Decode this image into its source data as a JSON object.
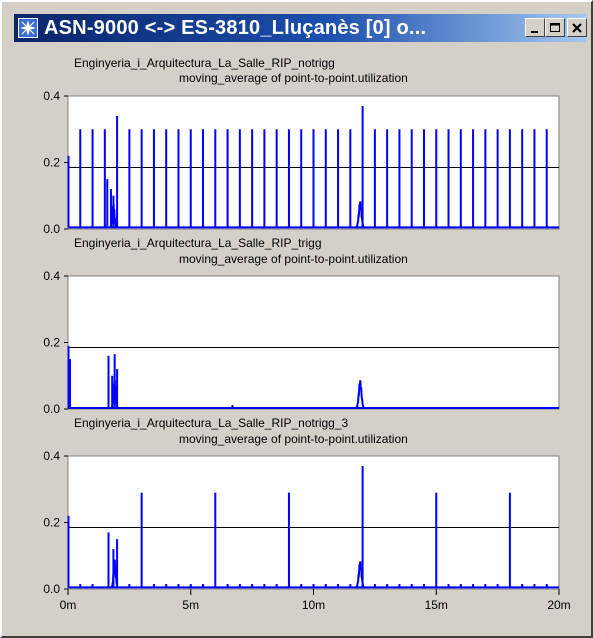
{
  "window": {
    "title": "ASN-9000 <-> ES-3810_Lluçanès [0] o...",
    "controls": [
      "minimize",
      "maximize",
      "close"
    ],
    "icons": {
      "app": "star-icon",
      "minimize": "minimize-icon",
      "maximize": "maximize-icon",
      "close": "close-icon"
    }
  },
  "colors": {
    "series": "#0000ff",
    "reference": "#000000",
    "background": "#d4d0c8",
    "titlebar": "#0a246a"
  },
  "chart_data": [
    {
      "type": "line",
      "title": "Enginyeria_i_Arquitectura_La_Salle_RIP_notrigg",
      "subtitle": "moving_average of point-to-point.utilization",
      "xlim": [
        0,
        20
      ],
      "ylim": [
        0,
        0.4
      ],
      "yticks": [
        "0.0",
        "0.2",
        "0.4"
      ],
      "reference_y": 0.185,
      "baseline": 0.005,
      "spikes": [
        [
          0.02,
          0.22
        ],
        [
          0.5,
          0.3
        ],
        [
          1.0,
          0.3
        ],
        [
          1.5,
          0.3
        ],
        [
          1.6,
          0.15
        ],
        [
          1.75,
          0.12
        ],
        [
          1.85,
          0.1
        ],
        [
          2.0,
          0.34
        ],
        [
          2.5,
          0.3
        ],
        [
          3.0,
          0.3
        ],
        [
          3.5,
          0.3
        ],
        [
          4.0,
          0.3
        ],
        [
          4.5,
          0.3
        ],
        [
          5.0,
          0.3
        ],
        [
          5.5,
          0.3
        ],
        [
          6.0,
          0.3
        ],
        [
          6.5,
          0.3
        ],
        [
          7.0,
          0.3
        ],
        [
          7.5,
          0.3
        ],
        [
          8.0,
          0.3
        ],
        [
          8.5,
          0.3
        ],
        [
          9.0,
          0.3
        ],
        [
          9.5,
          0.3
        ],
        [
          10.0,
          0.3
        ],
        [
          10.5,
          0.3
        ],
        [
          11.0,
          0.3
        ],
        [
          11.5,
          0.3
        ],
        [
          12.0,
          0.37
        ],
        [
          12.5,
          0.3
        ],
        [
          13.0,
          0.3
        ],
        [
          13.5,
          0.3
        ],
        [
          14.0,
          0.3
        ],
        [
          14.5,
          0.3
        ],
        [
          15.0,
          0.3
        ],
        [
          15.5,
          0.3
        ],
        [
          16.0,
          0.3
        ],
        [
          16.5,
          0.3
        ],
        [
          17.0,
          0.3
        ],
        [
          17.5,
          0.3
        ],
        [
          18.0,
          0.3
        ],
        [
          18.5,
          0.3
        ],
        [
          19.0,
          0.3
        ],
        [
          19.5,
          0.3
        ]
      ],
      "bumps": [
        [
          1.85,
          0.12,
          0.065
        ],
        [
          11.9,
          0.15,
          0.07
        ]
      ]
    },
    {
      "type": "line",
      "title": "Enginyeria_i_Arquitectura_La_Salle_RIP_trigg",
      "subtitle": "moving_average of point-to-point.utilization",
      "xlim": [
        0,
        20
      ],
      "ylim": [
        0,
        0.4
      ],
      "yticks": [
        "0.0",
        "0.2",
        "0.4"
      ],
      "reference_y": 0.185,
      "baseline": 0.003,
      "spikes": [
        [
          0.02,
          0.19
        ],
        [
          0.08,
          0.15
        ],
        [
          1.65,
          0.16
        ],
        [
          1.8,
          0.1
        ],
        [
          1.9,
          0.165
        ],
        [
          2.0,
          0.12
        ],
        [
          6.7,
          0.012
        ]
      ],
      "bumps": [
        [
          1.9,
          0.12,
          0.075
        ],
        [
          11.9,
          0.15,
          0.075
        ]
      ]
    },
    {
      "type": "line",
      "title": "Enginyeria_i_Arquitectura_La_Salle_RIP_notrigg_3",
      "subtitle": "moving_average of point-to-point.utilization",
      "xlim": [
        0,
        20
      ],
      "ylim": [
        0,
        0.4
      ],
      "yticks": [
        "0.0",
        "0.2",
        "0.4"
      ],
      "xticks": [
        "0m",
        "5m",
        "10m",
        "15m",
        "20m"
      ],
      "reference_y": 0.185,
      "baseline": 0.005,
      "spikes": [
        [
          0.02,
          0.22
        ],
        [
          1.65,
          0.17
        ],
        [
          1.85,
          0.12
        ],
        [
          2.0,
          0.15
        ],
        [
          3.0,
          0.29
        ],
        [
          6.0,
          0.29
        ],
        [
          9.0,
          0.29
        ],
        [
          12.0,
          0.37
        ],
        [
          15.0,
          0.29
        ],
        [
          18.0,
          0.29
        ]
      ],
      "small_spikes": [
        0.5,
        1.0,
        2.5,
        3.5,
        4.0,
        4.5,
        5.0,
        5.5,
        6.5,
        7.0,
        7.5,
        8.0,
        8.5,
        9.5,
        10.0,
        10.5,
        11.0,
        11.5,
        12.5,
        13.0,
        13.5,
        14.0,
        14.5,
        15.5,
        16.0,
        16.5,
        17.0,
        17.5,
        18.5,
        19.0,
        19.5
      ],
      "small_spike_value": 0.015,
      "bumps": [
        [
          1.9,
          0.12,
          0.075
        ],
        [
          11.9,
          0.15,
          0.07
        ]
      ]
    }
  ]
}
